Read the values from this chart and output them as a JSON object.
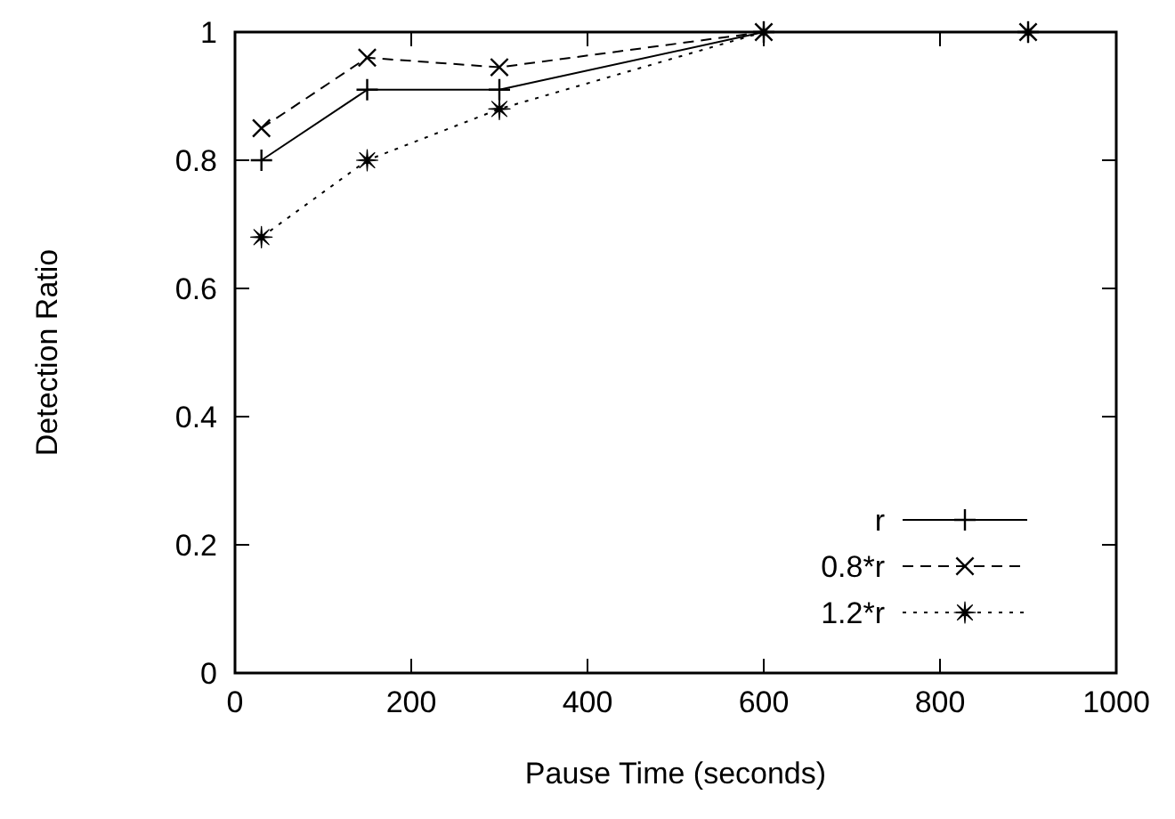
{
  "chart_data": {
    "type": "line",
    "xlabel": "Pause Time (seconds)",
    "ylabel": "Detection Ratio",
    "xlim": [
      0,
      1000
    ],
    "xticks": [
      0,
      200,
      400,
      600,
      800,
      1000
    ],
    "ylim": [
      0,
      1
    ],
    "yticks": [
      0,
      0.2,
      0.4,
      0.6,
      0.8,
      1
    ],
    "x": [
      30,
      150,
      300,
      600,
      900
    ],
    "grid": false,
    "legend": "bottom right",
    "series": [
      {
        "name": "r",
        "color": "#000000",
        "values": [
          0.8,
          0.91,
          0.91,
          1,
          1
        ],
        "marker": "plus",
        "line_style": "solid"
      },
      {
        "name": "0.8*r",
        "color": "#000000",
        "values": [
          0.85,
          0.96,
          0.945,
          1,
          1
        ],
        "marker": "cross",
        "line_style": "dashed"
      },
      {
        "name": "1.2*r",
        "color": "#000000",
        "values": [
          0.68,
          0.8,
          0.88,
          1,
          1
        ],
        "marker": "star",
        "line_style": "dotted"
      }
    ]
  }
}
